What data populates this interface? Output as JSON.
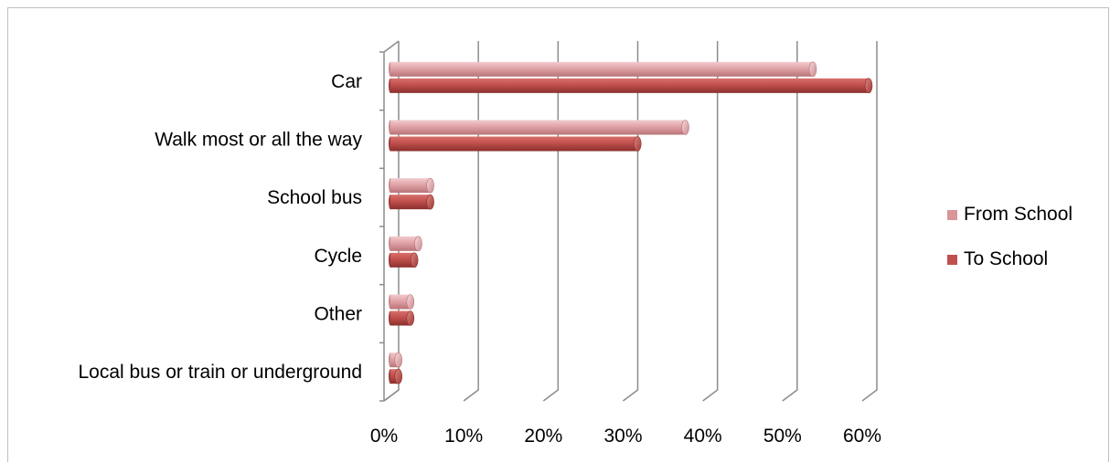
{
  "chart_data": {
    "type": "bar",
    "orientation": "horizontal",
    "categories": [
      "Car",
      "Walk most or all the way",
      "School bus",
      "Cycle",
      "Other",
      "Local bus or train or underground"
    ],
    "series": [
      {
        "name": "From School",
        "color": "#d9959a",
        "values": [
          53,
          37,
          5,
          3.5,
          2.5,
          1
        ]
      },
      {
        "name": "To School",
        "color": "#c0504d",
        "values": [
          60,
          31,
          5,
          3,
          2.5,
          1
        ]
      }
    ],
    "x_ticks": [
      "0%",
      "10%",
      "20%",
      "30%",
      "40%",
      "50%",
      "60%"
    ],
    "xlim": [
      0,
      60
    ],
    "grid": true,
    "legend_position": "right",
    "title": "",
    "xlabel": "",
    "ylabel": ""
  }
}
